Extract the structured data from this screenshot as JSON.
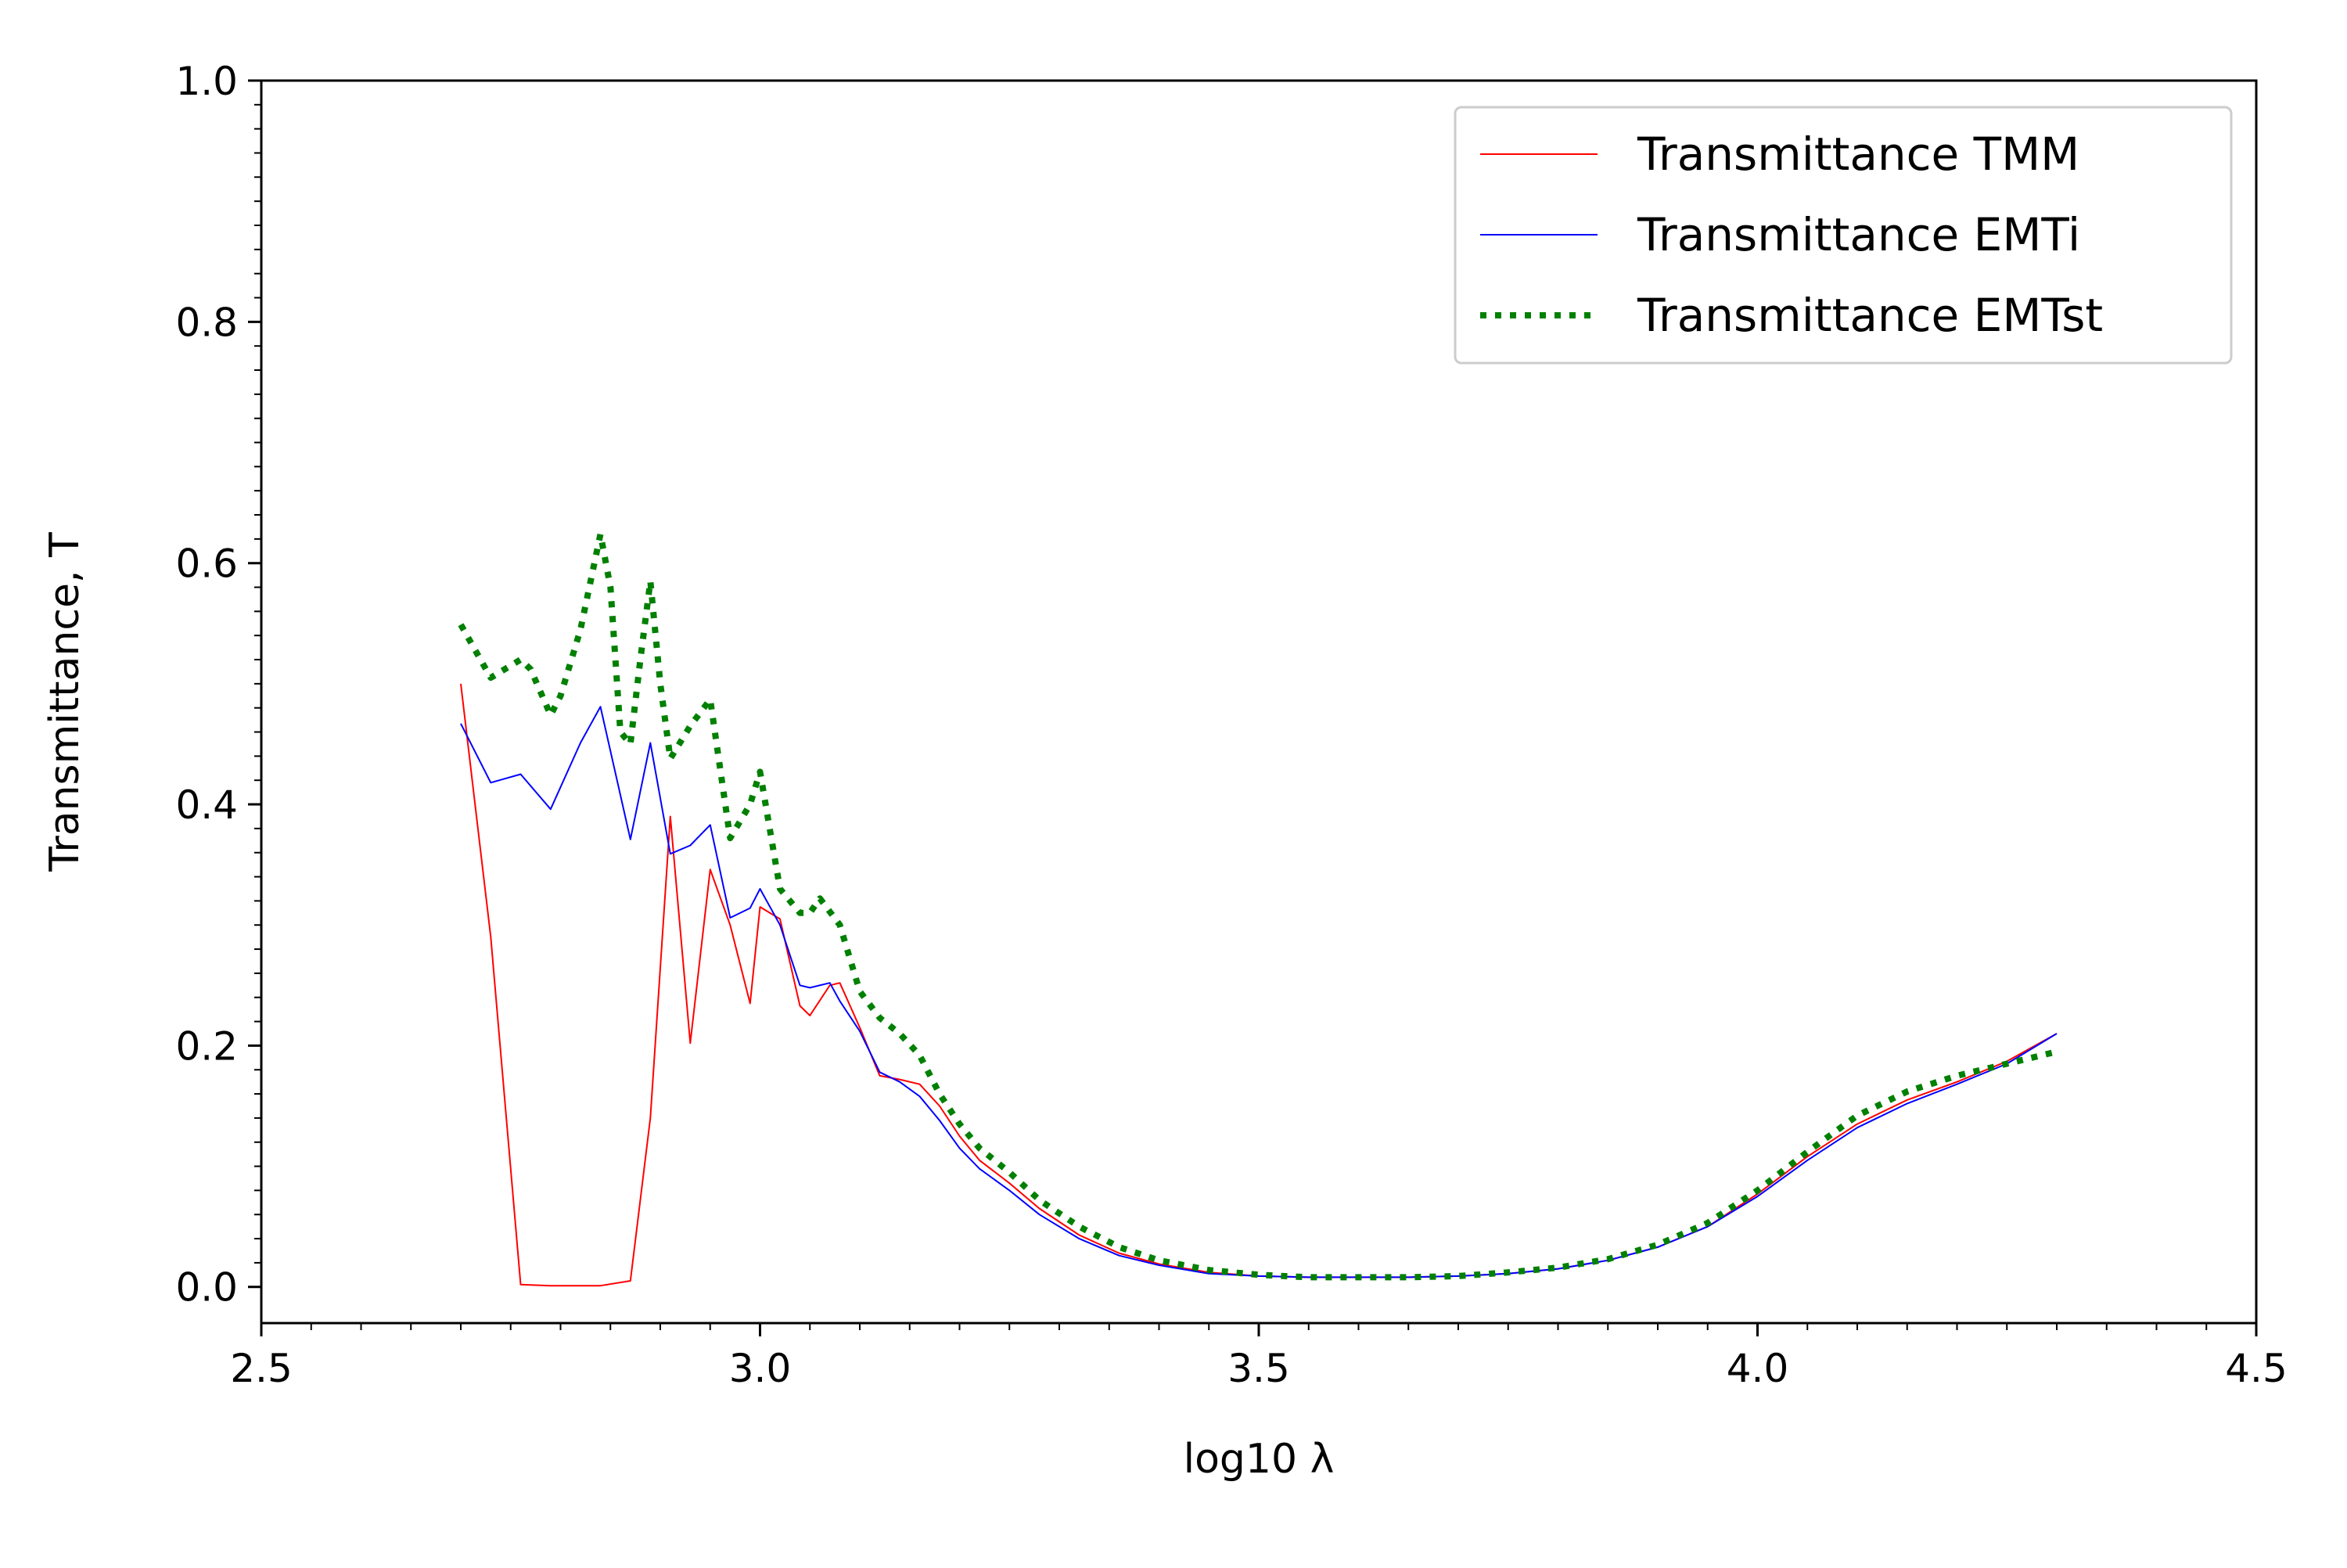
{
  "chart_data": {
    "type": "line",
    "title": "",
    "xlabel": "log10 λ",
    "ylabel": "Transmittance, T",
    "xlim": [
      2.5,
      4.5
    ],
    "ylim": [
      -0.03,
      1.0
    ],
    "xticks": [
      2.5,
      3.0,
      3.5,
      4.0,
      4.5
    ],
    "xtick_labels": [
      "2.5",
      "3.0",
      "3.5",
      "4.0",
      "4.5"
    ],
    "yticks": [
      0.0,
      0.2,
      0.4,
      0.6,
      0.8,
      1.0
    ],
    "ytick_labels": [
      "0.0",
      "0.2",
      "0.4",
      "0.6",
      "0.8",
      "1.0"
    ],
    "minor_ticks": true,
    "grid": false,
    "legend_position": "top-right",
    "series": [
      {
        "name": "Transmittance TMM",
        "color": "#ff0000",
        "style": "solid",
        "x": [
          2.7,
          2.73,
          2.76,
          2.79,
          2.82,
          2.84,
          2.87,
          2.89,
          2.91,
          2.93,
          2.95,
          2.97,
          2.99,
          3.0,
          3.02,
          3.04,
          3.05,
          3.07,
          3.08,
          3.1,
          3.12,
          3.14,
          3.16,
          3.18,
          3.2,
          3.22,
          3.25,
          3.28,
          3.32,
          3.36,
          3.4,
          3.45,
          3.5,
          3.55,
          3.6,
          3.65,
          3.7,
          3.75,
          3.8,
          3.85,
          3.9,
          3.95,
          4.0,
          4.05,
          4.1,
          4.15,
          4.2,
          4.25,
          4.3
        ],
        "y": [
          0.5,
          0.29,
          0.002,
          0.001,
          0.001,
          0.001,
          0.005,
          0.14,
          0.39,
          0.202,
          0.346,
          0.3,
          0.235,
          0.315,
          0.305,
          0.233,
          0.225,
          0.25,
          0.252,
          0.215,
          0.175,
          0.172,
          0.168,
          0.15,
          0.125,
          0.105,
          0.086,
          0.065,
          0.043,
          0.028,
          0.019,
          0.012,
          0.009,
          0.008,
          0.008,
          0.008,
          0.009,
          0.011,
          0.015,
          0.022,
          0.033,
          0.05,
          0.077,
          0.108,
          0.135,
          0.155,
          0.17,
          0.187,
          0.21
        ]
      },
      {
        "name": "Transmittance EMTi",
        "color": "#0000ff",
        "style": "solid",
        "x": [
          2.7,
          2.73,
          2.76,
          2.79,
          2.82,
          2.84,
          2.87,
          2.89,
          2.91,
          2.93,
          2.95,
          2.97,
          2.99,
          3.0,
          3.02,
          3.04,
          3.05,
          3.07,
          3.08,
          3.1,
          3.12,
          3.14,
          3.16,
          3.18,
          3.2,
          3.22,
          3.25,
          3.28,
          3.32,
          3.36,
          3.4,
          3.45,
          3.5,
          3.55,
          3.6,
          3.65,
          3.7,
          3.75,
          3.8,
          3.85,
          3.9,
          3.95,
          4.0,
          4.05,
          4.1,
          4.15,
          4.2,
          4.25,
          4.3
        ],
        "y": [
          0.467,
          0.418,
          0.425,
          0.396,
          0.451,
          0.481,
          0.371,
          0.451,
          0.359,
          0.366,
          0.383,
          0.306,
          0.314,
          0.33,
          0.3,
          0.25,
          0.248,
          0.252,
          0.237,
          0.212,
          0.178,
          0.17,
          0.158,
          0.138,
          0.115,
          0.098,
          0.08,
          0.06,
          0.04,
          0.026,
          0.018,
          0.011,
          0.009,
          0.008,
          0.008,
          0.008,
          0.009,
          0.011,
          0.015,
          0.022,
          0.033,
          0.05,
          0.075,
          0.105,
          0.132,
          0.152,
          0.168,
          0.185,
          0.21
        ]
      },
      {
        "name": "Transmittance EMTst",
        "color": "#008000",
        "style": "dotted",
        "x": [
          2.7,
          2.73,
          2.76,
          2.77,
          2.79,
          2.8,
          2.82,
          2.84,
          2.85,
          2.86,
          2.87,
          2.88,
          2.89,
          2.9,
          2.91,
          2.93,
          2.95,
          2.97,
          2.99,
          3.0,
          3.02,
          3.04,
          3.05,
          3.06,
          3.08,
          3.1,
          3.12,
          3.14,
          3.16,
          3.18,
          3.2,
          3.22,
          3.25,
          3.28,
          3.32,
          3.36,
          3.4,
          3.45,
          3.5,
          3.55,
          3.6,
          3.65,
          3.7,
          3.75,
          3.8,
          3.85,
          3.9,
          3.95,
          4.0,
          4.05,
          4.1,
          4.15,
          4.2,
          4.25,
          4.3
        ],
        "y": [
          0.549,
          0.505,
          0.52,
          0.512,
          0.474,
          0.49,
          0.545,
          0.624,
          0.58,
          0.46,
          0.45,
          0.52,
          0.585,
          0.5,
          0.438,
          0.465,
          0.487,
          0.372,
          0.4,
          0.427,
          0.33,
          0.31,
          0.31,
          0.322,
          0.3,
          0.245,
          0.223,
          0.21,
          0.192,
          0.16,
          0.135,
          0.115,
          0.095,
          0.072,
          0.05,
          0.033,
          0.022,
          0.014,
          0.01,
          0.008,
          0.008,
          0.008,
          0.009,
          0.012,
          0.016,
          0.023,
          0.035,
          0.053,
          0.08,
          0.112,
          0.142,
          0.162,
          0.175,
          0.185,
          0.195
        ]
      }
    ]
  }
}
